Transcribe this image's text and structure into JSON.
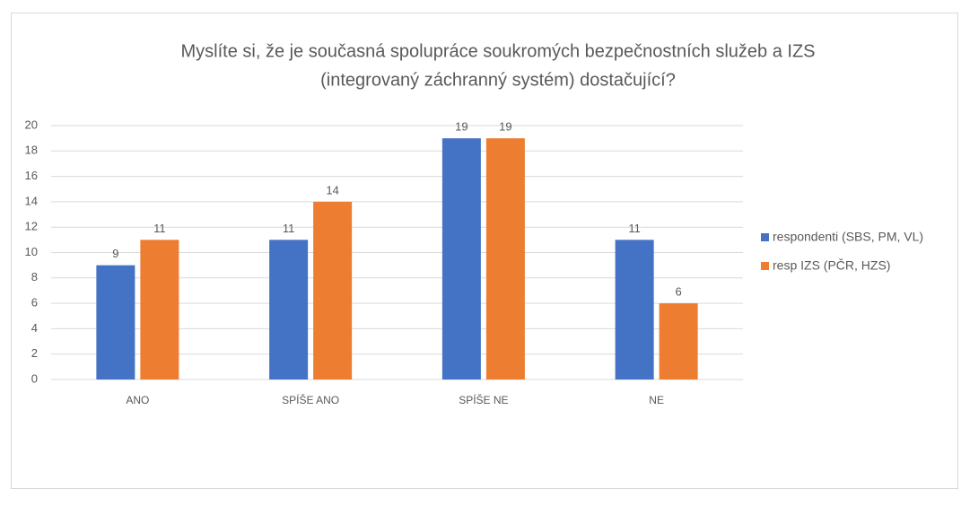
{
  "chart_data": {
    "type": "bar",
    "title": [
      "Myslíte si, že je současná spolupráce soukromých bezpečnostních služeb a IZS",
      "(integrovaný záchranný systém) dostačující?"
    ],
    "categories": [
      "ANO",
      "SPÍŠE ANO",
      "SPÍŠE NE",
      "NE"
    ],
    "series": [
      {
        "name": "respondenti (SBS, PM, VL)",
        "color": "#4472c4",
        "values": [
          9,
          11,
          19,
          11
        ]
      },
      {
        "name": "resp IZS (PČR, HZS)",
        "color": "#ed7d31",
        "values": [
          11,
          14,
          19,
          6
        ]
      }
    ],
    "ylim": [
      0,
      20
    ],
    "yticks": [
      0,
      2,
      4,
      6,
      8,
      10,
      12,
      14,
      16,
      18,
      20
    ],
    "grid": true,
    "legend": "right"
  }
}
